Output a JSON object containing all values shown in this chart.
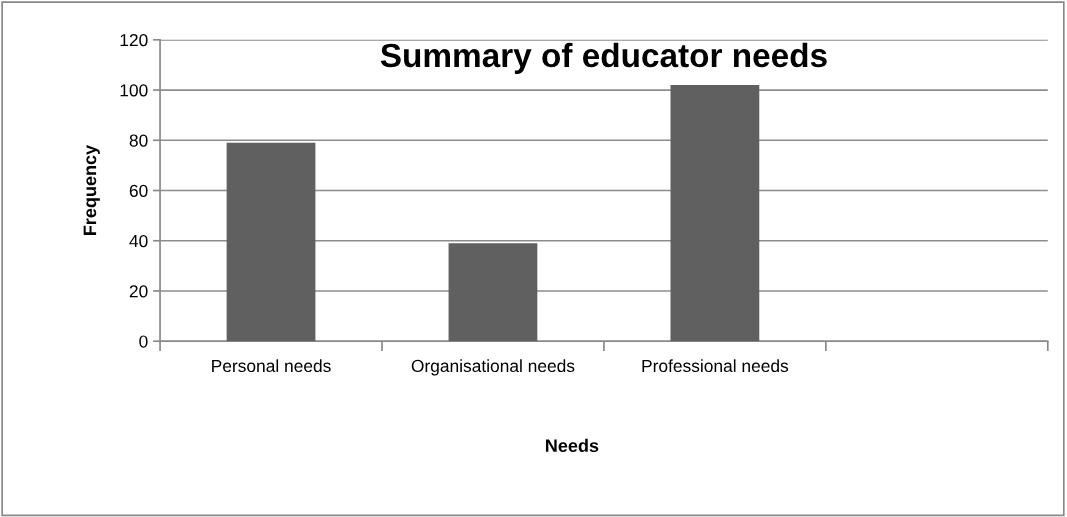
{
  "chart_data": {
    "type": "bar",
    "title": "Summary of educator needs",
    "xlabel": "Needs",
    "ylabel": "Frequency",
    "categories": [
      "Personal needs",
      "Organisational needs",
      "Professional needs",
      null
    ],
    "values": [
      79,
      39,
      102,
      null
    ],
    "color": "#606060",
    "ylim": [
      0,
      120
    ],
    "yticks": [
      0,
      20,
      40,
      60,
      80,
      100,
      120
    ],
    "grid": "y",
    "legend": false
  }
}
